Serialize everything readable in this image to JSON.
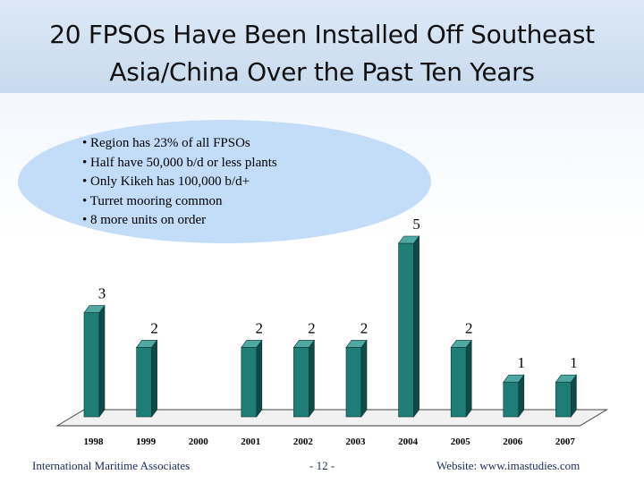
{
  "title": {
    "line1": "20 FPSOs Have Been Installed Off Southeast",
    "line2": "Asia/China Over the Past Ten Years"
  },
  "bullets": [
    "Region has 23% of all FPSOs",
    "Half have 50,000 b/d or less plants",
    "Only Kikeh has 100,000 b/d+",
    "Turret mooring common",
    "8 more units on order"
  ],
  "colors": {
    "bar_front": "#1f7d78",
    "bar_side": "#0f4a46",
    "bar_top": "#4fa8a2",
    "bubble": "#c3dcf7",
    "title_band": "#d3e2f3"
  },
  "chart_data": {
    "type": "bar",
    "categories": [
      "1998",
      "1999",
      "2000",
      "2001",
      "2002",
      "2003",
      "2004",
      "2005",
      "2006",
      "2007"
    ],
    "values": [
      3,
      2,
      0,
      2,
      2,
      2,
      5,
      2,
      1,
      1
    ],
    "data_labels": [
      "3",
      "2",
      "",
      "2",
      "2",
      "2",
      "5",
      "2",
      "1",
      "1"
    ],
    "ylim": [
      0,
      5
    ],
    "grid": false,
    "legend": "none"
  },
  "footer": {
    "left": "International Maritime Associates",
    "center": "- 12 -",
    "right": "Website: www.imastudies.com"
  }
}
